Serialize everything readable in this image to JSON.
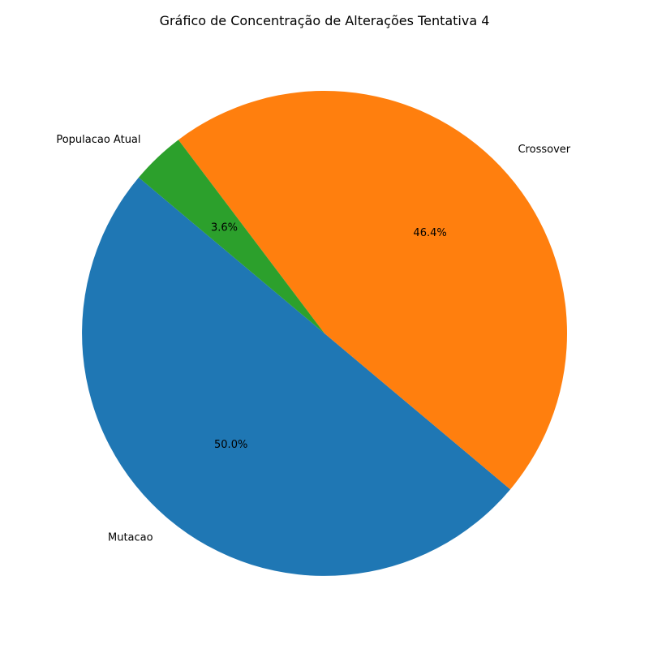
{
  "chart_data": {
    "type": "pie",
    "title": "Gráfico de Concentração de Alterações Tentativa 4",
    "slices": [
      {
        "label": "Mutacao",
        "value": 50.0,
        "pct_label": "50.0%",
        "color": "#1f77b4"
      },
      {
        "label": "Crossover",
        "value": 46.4,
        "pct_label": "46.4%",
        "color": "#ff7f0e"
      },
      {
        "label": "Populacao Atual",
        "value": 3.6,
        "pct_label": "3.6%",
        "color": "#2ca02c"
      }
    ],
    "start_angle_deg": 140,
    "direction": "counterclockwise",
    "legend": "none"
  }
}
